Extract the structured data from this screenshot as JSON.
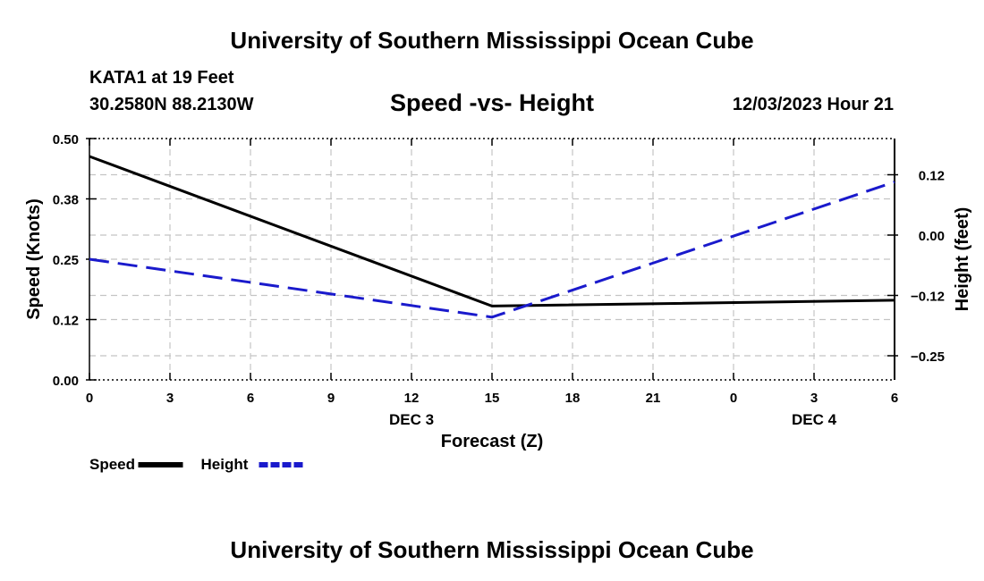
{
  "header": {
    "title": "University of Southern Mississippi Ocean Cube",
    "station": "KATA1 at 19 Feet",
    "coords": "30.2580N  88.2130W",
    "subtitle": "Speed -vs- Height",
    "datetime": "12/03/2023 Hour 21"
  },
  "footer": {
    "title": "University of Southern Mississippi Ocean Cube"
  },
  "chart_data": {
    "type": "line",
    "title": "Speed -vs- Height",
    "xlabel": "Forecast (Z)",
    "ylabel": "Speed (Knots)",
    "y2label": "Height (feet)",
    "x_hours": [
      0,
      3,
      6,
      9,
      12,
      15,
      18,
      21,
      24,
      27,
      30
    ],
    "x_tick_labels": [
      "0",
      "3",
      "6",
      "9",
      "12",
      "15",
      "18",
      "21",
      "0",
      "3",
      "6"
    ],
    "date_labels": [
      {
        "hour": 12,
        "label": "DEC 3"
      },
      {
        "hour": 27,
        "label": "DEC 4"
      }
    ],
    "xlim": [
      0,
      30
    ],
    "ylim": [
      0,
      0.5
    ],
    "y_ticks": [
      0,
      0.125,
      0.25,
      0.375,
      0.5
    ],
    "y_tick_labels": [
      "0.00",
      "0.12",
      "0.25",
      "0.38",
      "0.50"
    ],
    "y2lim": [
      -0.3,
      0.2
    ],
    "y2_ticks": [
      -0.25,
      -0.125,
      0.0,
      0.125
    ],
    "y2_tick_labels": [
      "−0.25",
      "−0.12",
      "0.00",
      "0.12"
    ],
    "grid": true,
    "series": [
      {
        "name": "Speed",
        "axis": "left",
        "color": "#000000",
        "style": "solid",
        "x": [
          0,
          15,
          30
        ],
        "values": [
          0.463,
          0.153,
          0.165
        ]
      },
      {
        "name": "Height",
        "axis": "right",
        "color": "#1a1acc",
        "style": "dashed",
        "x": [
          0,
          15,
          30
        ],
        "values": [
          -0.05,
          -0.17,
          0.11
        ]
      }
    ],
    "legend": [
      {
        "label": "Speed",
        "color": "#000000",
        "style": "solid"
      },
      {
        "label": "Height",
        "color": "#1a1acc",
        "style": "dashed"
      }
    ]
  }
}
